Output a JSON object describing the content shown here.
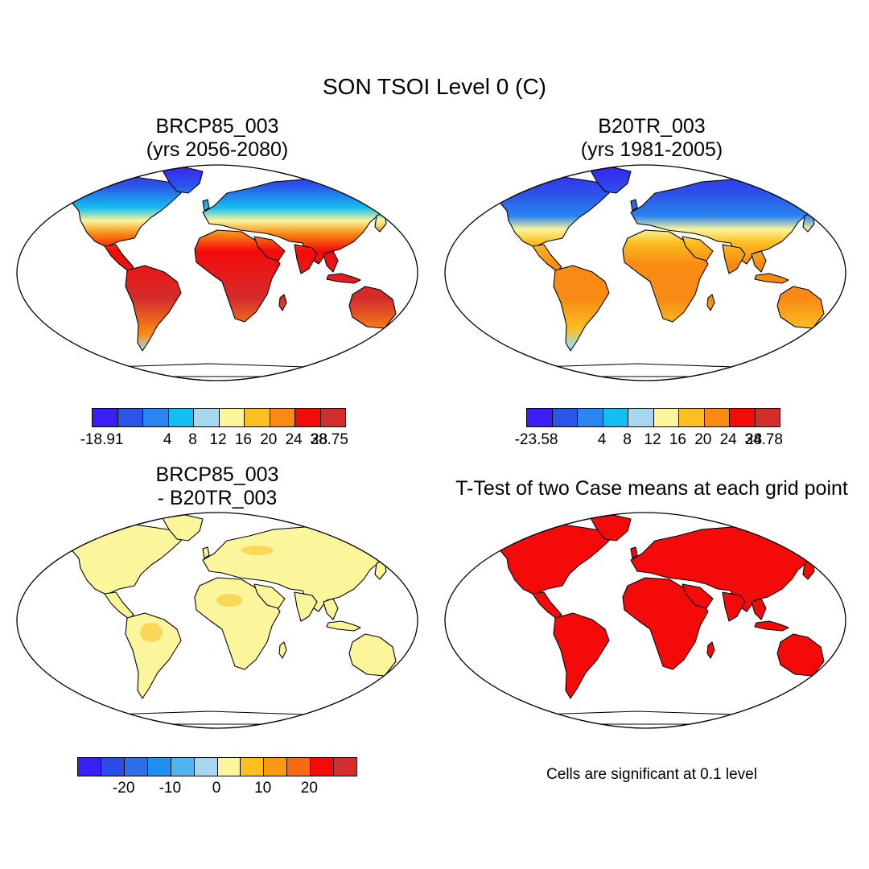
{
  "title": "SON TSOI Level 0 (C)",
  "panels": [
    {
      "title_line1": "BRCP85_003",
      "title_line2": "(yrs 2056-2080)",
      "style": "warm",
      "scheme": "c1"
    },
    {
      "title_line1": "B20TR_003",
      "title_line2": "(yrs 1981-2005)",
      "style": "cool",
      "scheme": "c1"
    },
    {
      "title_line1": "BRCP85_003",
      "title_line2": "- B20TR_003",
      "style": "diff",
      "scheme": "c3"
    },
    {
      "title_line1": "T-Test of two Case means at each grid point",
      "title_line2": "",
      "style": "sig",
      "scheme": "c3"
    }
  ],
  "colorbars": [
    {
      "colors": [
        "#3a1ff5",
        "#2a55e8",
        "#2a86ee",
        "#14bef0",
        "#a7d7ee",
        "#fbf59b",
        "#fbbf21",
        "#f98b14",
        "#f50a0a",
        "#d42d2d"
      ],
      "labels": [
        "-18.91",
        "4",
        "8",
        "12",
        "16",
        "20",
        "24",
        "28",
        "38.75"
      ]
    },
    {
      "colors": [
        "#3a1ff5",
        "#2a55e8",
        "#2a86ee",
        "#14bef0",
        "#a7d7ee",
        "#fbf59b",
        "#fbbf21",
        "#f98b14",
        "#f50a0a",
        "#d42d2d"
      ],
      "labels": [
        "-23.58",
        "4",
        "8",
        "12",
        "16",
        "20",
        "24",
        "28",
        "34.78"
      ]
    },
    {
      "colors": [
        "#3a1ff5",
        "#2a4be6",
        "#2e6ee8",
        "#1e90f0",
        "#50b4f0",
        "#a7d7ee",
        "#fbf59b",
        "#fbbf21",
        "#fa9a14",
        "#f86a10",
        "#f50a0a",
        "#d42d2d"
      ],
      "labels": [
        "-20",
        "-10",
        "0",
        "10",
        "20"
      ]
    }
  ],
  "significance_note": "Cells are significant at 0.1 level"
}
